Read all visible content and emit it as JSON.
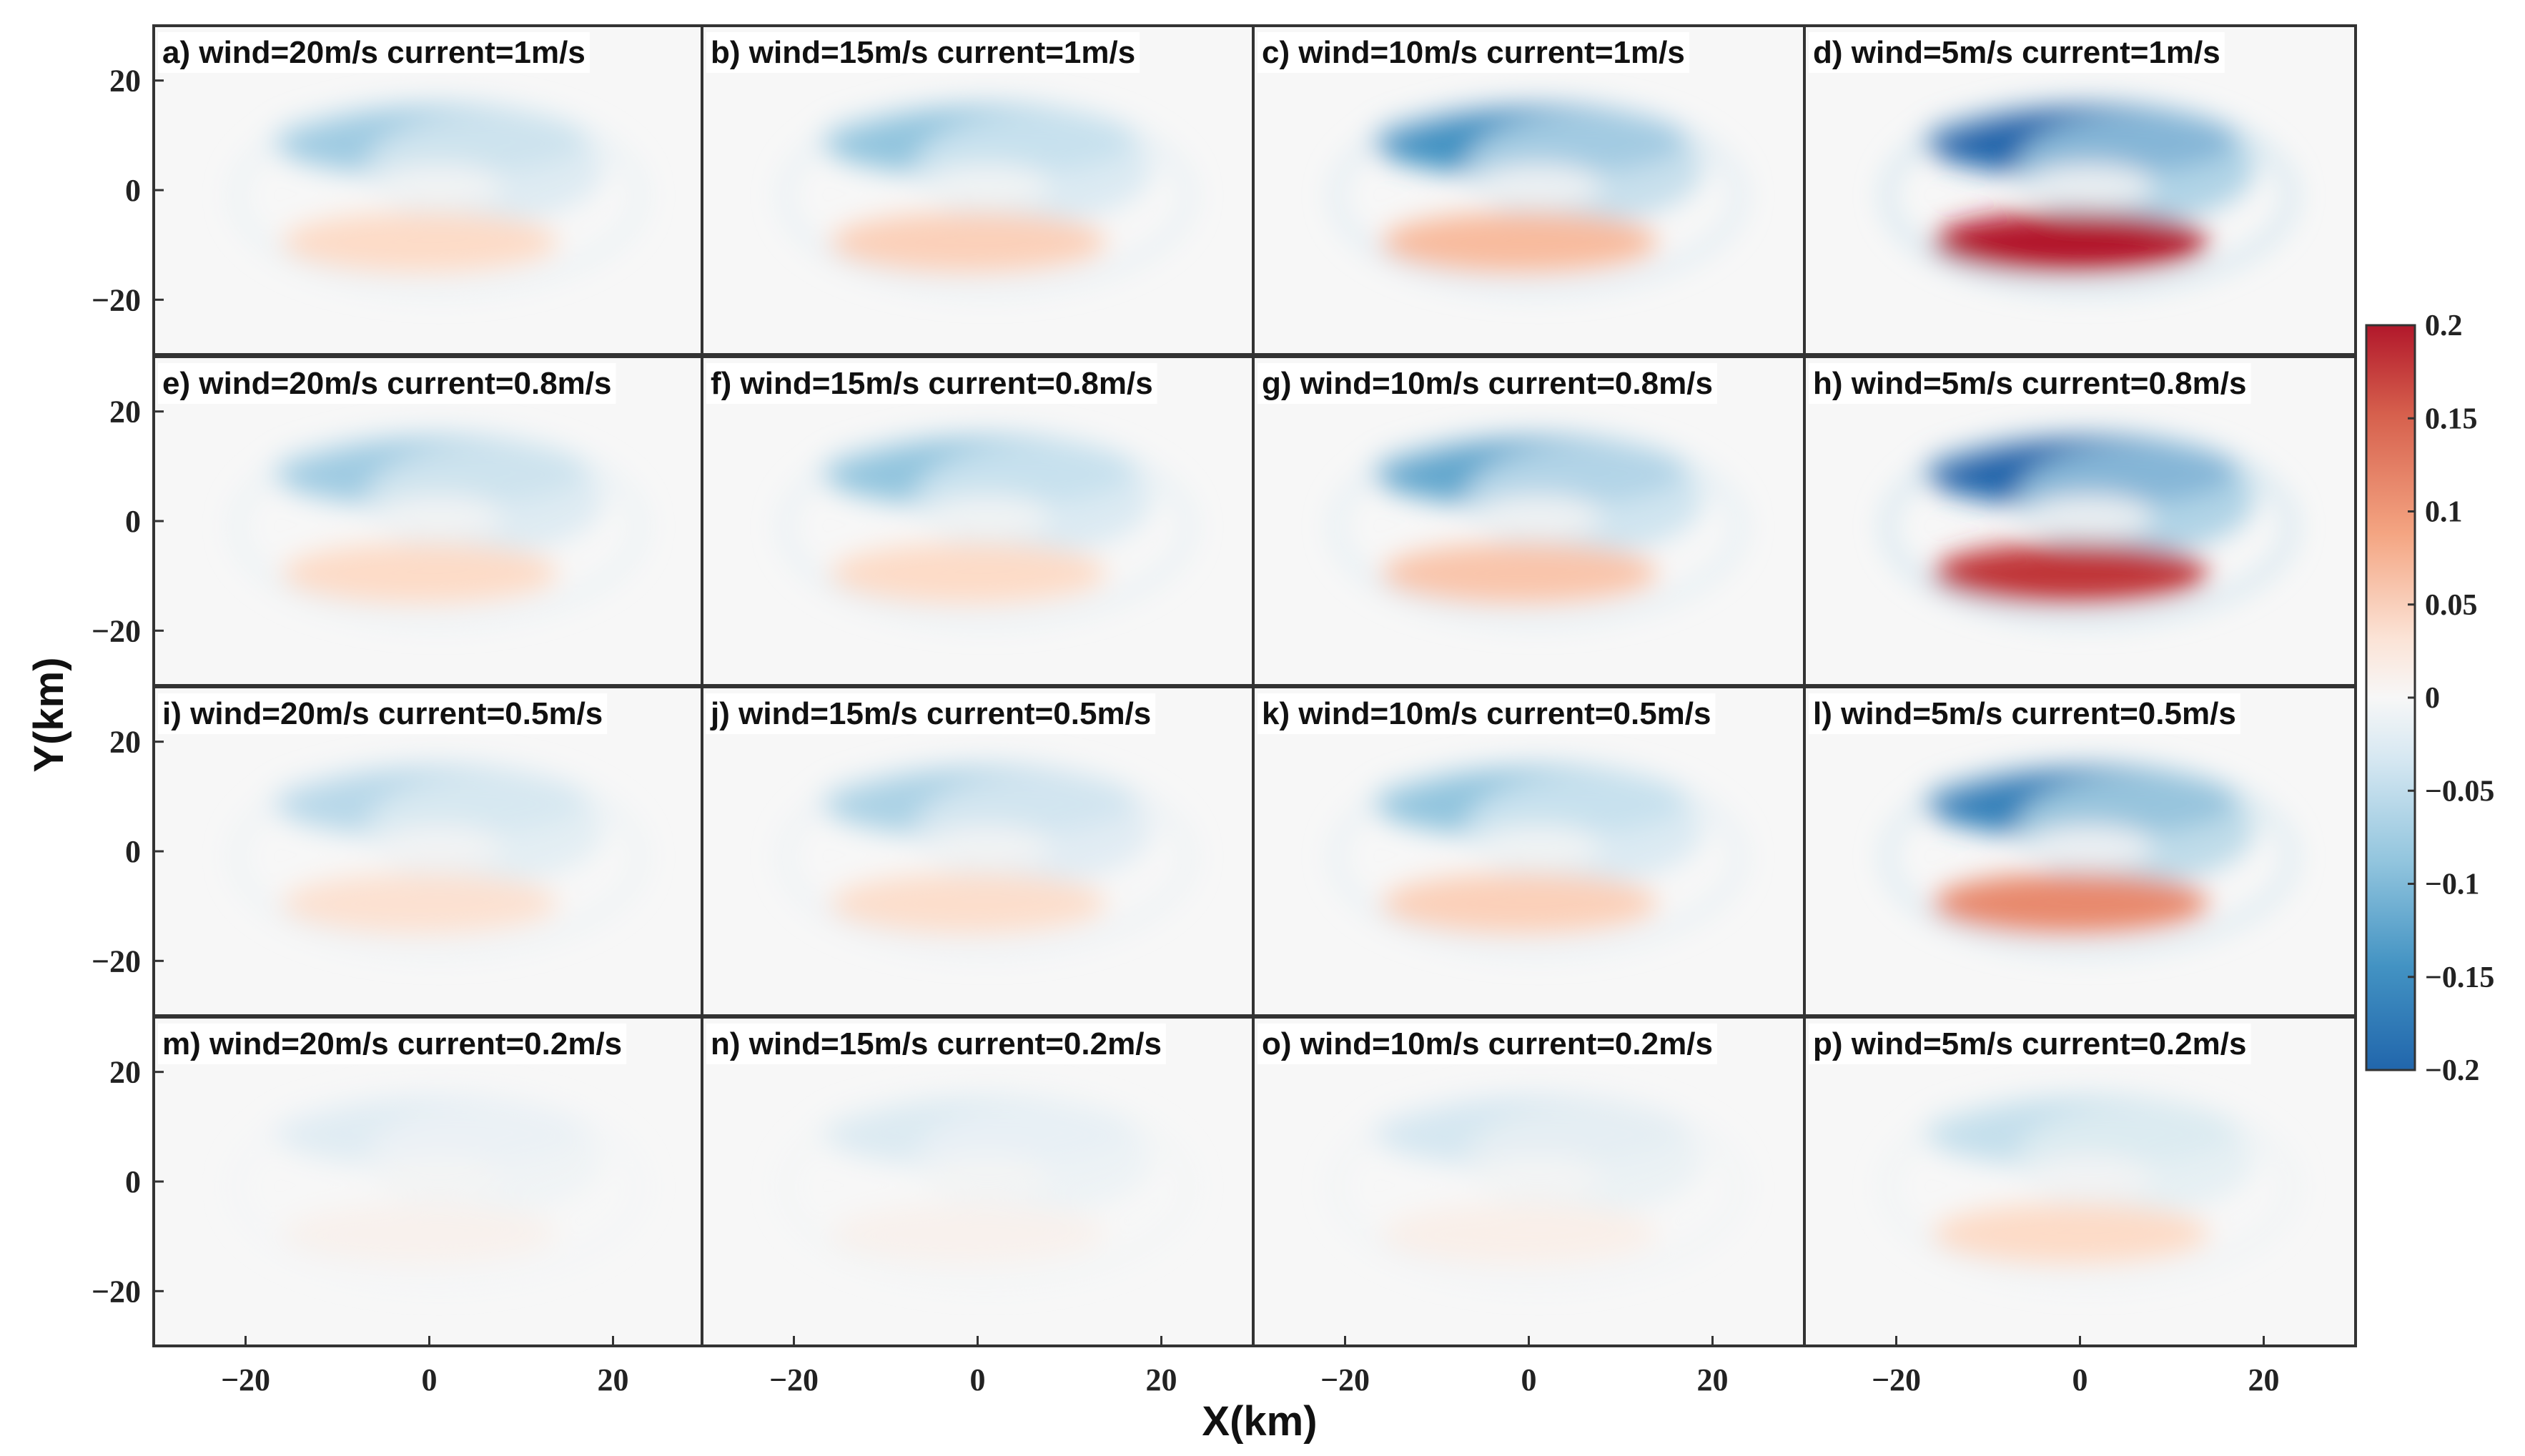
{
  "chart_data": {
    "type": "heatmap",
    "layout": "4x4 panel grid",
    "xlabel": "X(km)",
    "ylabel": "Y(km)",
    "xlim": [
      -30,
      30
    ],
    "ylim": [
      -30,
      30
    ],
    "xticks": [
      -20,
      0,
      20
    ],
    "yticks": [
      20,
      0,
      -20
    ],
    "xtick_labels": [
      "−20",
      "0",
      "20"
    ],
    "ytick_labels": [
      "20",
      "0",
      "−20"
    ],
    "colorbar": {
      "range": [
        -0.2,
        0.2
      ],
      "ticks": [
        0.2,
        0.15,
        0.1,
        0.05,
        0,
        -0.05,
        -0.1,
        -0.15,
        -0.2
      ],
      "tick_labels": [
        "0.2",
        "0.15",
        "0.1",
        "0.05",
        "0",
        "−0.05",
        "−0.1",
        "−0.15",
        "−0.2"
      ],
      "colormap": "blue-white-red",
      "low_color": "#2166ac",
      "mid_color": "#f7f7f7",
      "high_color": "#b2182b"
    },
    "panels": [
      {
        "label": "a) wind=20m/s current=1m/s",
        "wind": 20,
        "current": 1,
        "pos_peak": 0.05,
        "neg_peak": -0.09
      },
      {
        "label": "b) wind=15m/s current=1m/s",
        "wind": 15,
        "current": 1,
        "pos_peak": 0.06,
        "neg_peak": -0.1
      },
      {
        "label": "c) wind=10m/s current=1m/s",
        "wind": 10,
        "current": 1,
        "pos_peak": 0.08,
        "neg_peak": -0.15
      },
      {
        "label": "d) wind=5m/s current=1m/s",
        "wind": 5,
        "current": 1,
        "pos_peak": 0.2,
        "neg_peak": -0.2
      },
      {
        "label": "e) wind=20m/s current=0.8m/s",
        "wind": 20,
        "current": 0.8,
        "pos_peak": 0.05,
        "neg_peak": -0.09
      },
      {
        "label": "f) wind=15m/s current=0.8m/s",
        "wind": 15,
        "current": 0.8,
        "pos_peak": 0.05,
        "neg_peak": -0.1
      },
      {
        "label": "g) wind=10m/s current=0.8m/s",
        "wind": 10,
        "current": 0.8,
        "pos_peak": 0.07,
        "neg_peak": -0.13
      },
      {
        "label": "h) wind=5m/s current=0.8m/s",
        "wind": 5,
        "current": 0.8,
        "pos_peak": 0.18,
        "neg_peak": -0.2
      },
      {
        "label": "i) wind=20m/s current=0.5m/s",
        "wind": 20,
        "current": 0.5,
        "pos_peak": 0.04,
        "neg_peak": -0.07
      },
      {
        "label": "j) wind=15m/s current=0.5m/s",
        "wind": 15,
        "current": 0.5,
        "pos_peak": 0.045,
        "neg_peak": -0.08
      },
      {
        "label": "k) wind=10m/s current=0.5m/s",
        "wind": 10,
        "current": 0.5,
        "pos_peak": 0.06,
        "neg_peak": -0.1
      },
      {
        "label": "l) wind=5m/s current=0.5m/s",
        "wind": 5,
        "current": 0.5,
        "pos_peak": 0.12,
        "neg_peak": -0.17
      },
      {
        "label": "m) wind=20m/s current=0.2m/s",
        "wind": 20,
        "current": 0.2,
        "pos_peak": 0.01,
        "neg_peak": -0.03
      },
      {
        "label": "n) wind=15m/s current=0.2m/s",
        "wind": 15,
        "current": 0.2,
        "pos_peak": 0.01,
        "neg_peak": -0.035
      },
      {
        "label": "o) wind=10m/s current=0.2m/s",
        "wind": 10,
        "current": 0.2,
        "pos_peak": 0.015,
        "neg_peak": -0.045
      },
      {
        "label": "p) wind=5m/s current=0.2m/s",
        "wind": 5,
        "current": 0.2,
        "pos_peak": 0.05,
        "neg_peak": -0.06
      }
    ]
  }
}
